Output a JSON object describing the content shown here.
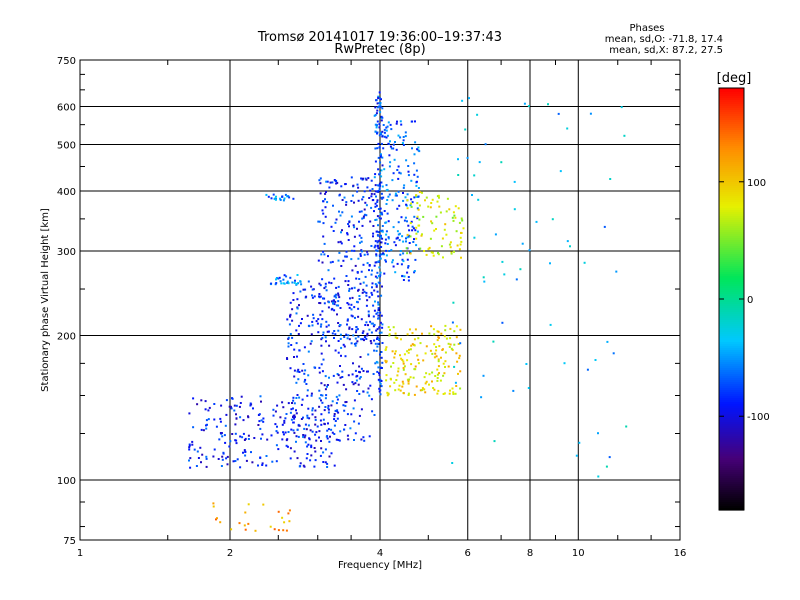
{
  "chart_data": {
    "type": "scatter",
    "title": "Tromsø 20141017 19:36:00–19:37:43",
    "subtitle": "RwPretec (8p)",
    "stats": {
      "heading": "Phases",
      "line1": "mean, sd,O: -71.8, 17.4",
      "line2": "mean, sd,X: 87.2, 27.5"
    },
    "xlabel": "Frequency [MHz]",
    "ylabel": "Stationary phase Virtual Height [km]",
    "x_scale": "log",
    "y_scale": "log",
    "xlim": [
      1,
      16
    ],
    "ylim": [
      75,
      750
    ],
    "x_ticks": [
      1,
      2,
      4,
      6,
      8,
      10,
      16
    ],
    "y_ticks": [
      75,
      100,
      200,
      300,
      400,
      500,
      600,
      750
    ],
    "grid": true,
    "colorbar": {
      "label": "[deg]",
      "range": [
        -180,
        180
      ],
      "ticks": [
        -100,
        0,
        100
      ]
    },
    "clusters": [
      {
        "name": "O-trace lower E/F1",
        "x_range": [
          1.65,
          3.3
        ],
        "y_range": [
          106,
          150
        ],
        "phase_deg": -90,
        "n": 260
      },
      {
        "name": "O-trace F1 rise",
        "x_range": [
          2.6,
          3.9
        ],
        "y_range": [
          120,
          260
        ],
        "phase_deg": -85,
        "n": 300
      },
      {
        "name": "O-trace F2",
        "x_range": [
          3.0,
          4.0
        ],
        "y_range": [
          190,
          430
        ],
        "phase_deg": -85,
        "n": 280
      },
      {
        "name": "O-trace cusp",
        "x_range": [
          3.9,
          4.05
        ],
        "y_range": [
          150,
          650
        ],
        "phase_deg": -75,
        "n": 180
      },
      {
        "name": "O-trace high F2",
        "x_range": [
          4.0,
          4.8
        ],
        "y_range": [
          260,
          560
        ],
        "phase_deg": -70,
        "n": 200
      },
      {
        "name": "E-layer trace",
        "x_range": [
          2.4,
          2.8
        ],
        "y_range": [
          255,
          268
        ],
        "phase_deg": -60,
        "n": 30
      },
      {
        "name": "Sporadic trace",
        "x_range": [
          2.35,
          2.7
        ],
        "y_range": [
          380,
          395
        ],
        "phase_deg": -55,
        "n": 20
      },
      {
        "name": "X-trace F1",
        "x_range": [
          4.1,
          5.8
        ],
        "y_range": [
          150,
          210
        ],
        "phase_deg": 90,
        "n": 180
      },
      {
        "name": "X-trace F2",
        "x_range": [
          4.5,
          5.9
        ],
        "y_range": [
          290,
          400
        ],
        "phase_deg": 75,
        "n": 90
      },
      {
        "name": "Low height noise",
        "x_range": [
          1.85,
          2.7
        ],
        "y_range": [
          78,
          90
        ],
        "phase_deg": 120,
        "n": 25
      },
      {
        "name": "Scattered noise",
        "x_range": [
          5.5,
          12.5
        ],
        "y_range": [
          100,
          650
        ],
        "phase_deg": -40,
        "n": 70
      }
    ]
  }
}
